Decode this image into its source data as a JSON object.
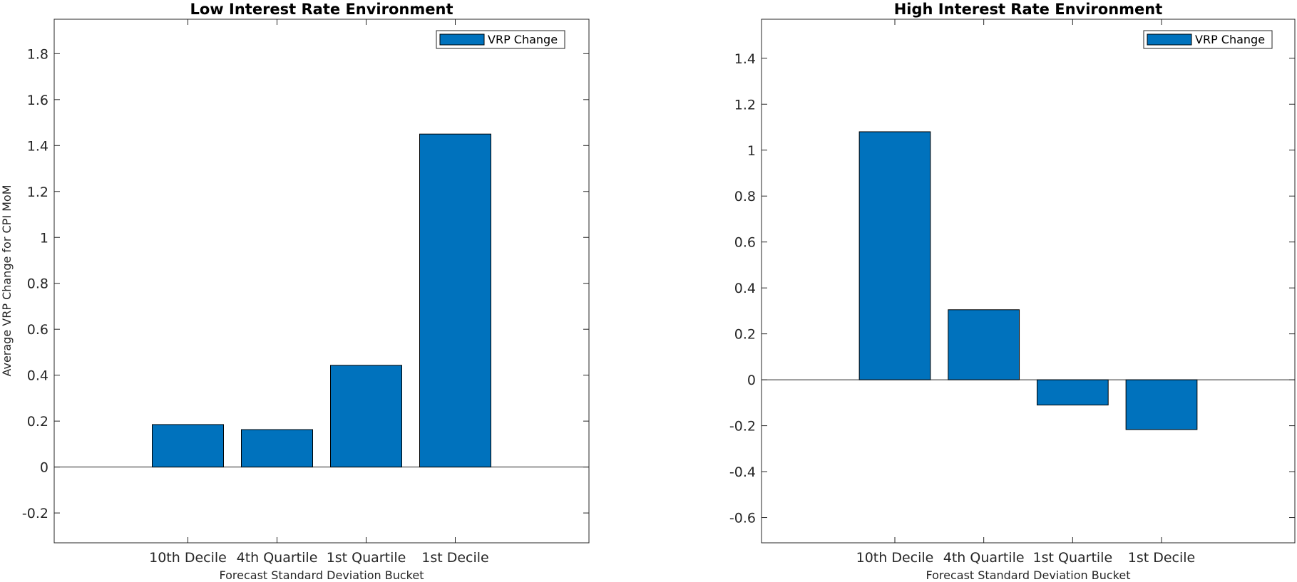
{
  "chart_data": [
    {
      "type": "bar",
      "title": "Low Interest Rate Environment",
      "xlabel": "Forecast Standard Deviation Bucket",
      "ylabel": "Average VRP Change for CPI MoM",
      "categories": [
        "10th Decile",
        "4th Quartile",
        "1st Quartile",
        "1st Decile"
      ],
      "series": [
        {
          "name": "VRP Change",
          "values": [
            0.185,
            0.163,
            0.443,
            1.45
          ]
        }
      ],
      "ylim": [
        -0.33,
        1.95
      ],
      "yticks": [
        -0.2,
        0,
        0.2,
        0.4,
        0.6,
        0.8,
        1,
        1.2,
        1.4,
        1.6,
        1.8
      ],
      "ytick_labels": [
        "-0.2",
        "0",
        "0.2",
        "0.4",
        "0.6",
        "0.8",
        "1",
        "1.2",
        "1.4",
        "1.6",
        "1.8"
      ],
      "grid": false,
      "legend": "top-right",
      "bar_color": "#0072BD"
    },
    {
      "type": "bar",
      "title": "High Interest Rate Environment",
      "xlabel": "Forecast Standard Deviation Bucket",
      "ylabel": "",
      "categories": [
        "10th Decile",
        "4th Quartile",
        "1st Quartile",
        "1st Decile"
      ],
      "series": [
        {
          "name": "VRP Change",
          "values": [
            1.08,
            0.305,
            -0.11,
            -0.217
          ]
        }
      ],
      "ylim": [
        -0.71,
        1.57
      ],
      "yticks": [
        -0.6,
        -0.4,
        -0.2,
        0,
        0.2,
        0.4,
        0.6,
        0.8,
        1,
        1.2,
        1.4
      ],
      "ytick_labels": [
        "-0.6",
        "-0.4",
        "-0.2",
        "0",
        "0.2",
        "0.4",
        "0.6",
        "0.8",
        "1",
        "1.2",
        "1.4"
      ],
      "grid": false,
      "legend": "top-right",
      "bar_color": "#0072BD"
    }
  ]
}
